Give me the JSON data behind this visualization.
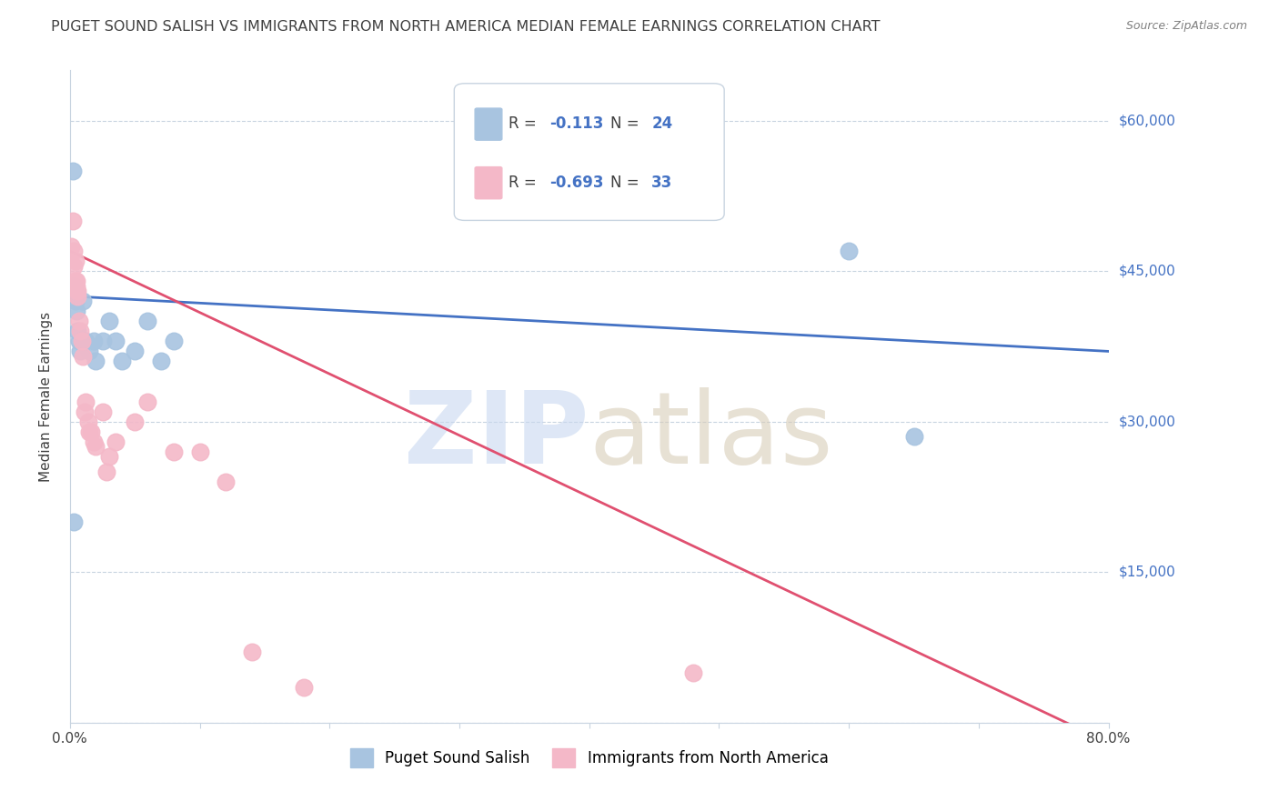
{
  "title": "PUGET SOUND SALISH VS IMMIGRANTS FROM NORTH AMERICA MEDIAN FEMALE EARNINGS CORRELATION CHART",
  "source": "Source: ZipAtlas.com",
  "ylabel": "Median Female Earnings",
  "xlim": [
    0.0,
    0.8
  ],
  "ylim": [
    0,
    65000
  ],
  "yticks": [
    0,
    15000,
    30000,
    45000,
    60000
  ],
  "ytick_labels": [
    "",
    "$15,000",
    "$30,000",
    "$45,000",
    "$60,000"
  ],
  "xticks": [
    0.0,
    0.1,
    0.2,
    0.3,
    0.4,
    0.5,
    0.6,
    0.7,
    0.8
  ],
  "xtick_labels": [
    "0.0%",
    "",
    "",
    "",
    "",
    "",
    "",
    "",
    "80.0%"
  ],
  "bg_color": "#ffffff",
  "blue_color": "#a8c4e0",
  "blue_line_color": "#4472c4",
  "pink_color": "#f4b8c8",
  "pink_line_color": "#e05070",
  "blue_trend": [
    42500,
    37000
  ],
  "pink_trend": [
    47000,
    -2000
  ],
  "blue_scatter_x": [
    0.002,
    0.003,
    0.004,
    0.005,
    0.005,
    0.006,
    0.007,
    0.008,
    0.01,
    0.012,
    0.015,
    0.018,
    0.02,
    0.025,
    0.03,
    0.035,
    0.04,
    0.05,
    0.06,
    0.07,
    0.08,
    0.6,
    0.65,
    0.003
  ],
  "blue_scatter_y": [
    55000,
    43500,
    42000,
    41000,
    43000,
    39000,
    38000,
    37000,
    42000,
    38000,
    37000,
    38000,
    36000,
    38000,
    40000,
    38000,
    36000,
    37000,
    40000,
    36000,
    38000,
    47000,
    28500,
    20000
  ],
  "pink_scatter_x": [
    0.001,
    0.002,
    0.003,
    0.003,
    0.004,
    0.004,
    0.005,
    0.005,
    0.006,
    0.006,
    0.007,
    0.008,
    0.009,
    0.01,
    0.011,
    0.012,
    0.014,
    0.015,
    0.016,
    0.018,
    0.02,
    0.025,
    0.028,
    0.03,
    0.035,
    0.05,
    0.06,
    0.08,
    0.12,
    0.18,
    0.48,
    0.1,
    0.14
  ],
  "pink_scatter_y": [
    47500,
    50000,
    47000,
    45500,
    44000,
    46000,
    43500,
    44000,
    43000,
    42500,
    40000,
    39000,
    38000,
    36500,
    31000,
    32000,
    30000,
    29000,
    29000,
    28000,
    27500,
    31000,
    25000,
    26500,
    28000,
    30000,
    32000,
    27000,
    24000,
    3500,
    5000,
    27000,
    7000
  ],
  "title_color": "#404040",
  "axis_color": "#4472c4",
  "source_color": "#808080",
  "legend_R1": "-0.113",
  "legend_N1": "24",
  "legend_R2": "-0.693",
  "legend_N2": "33"
}
